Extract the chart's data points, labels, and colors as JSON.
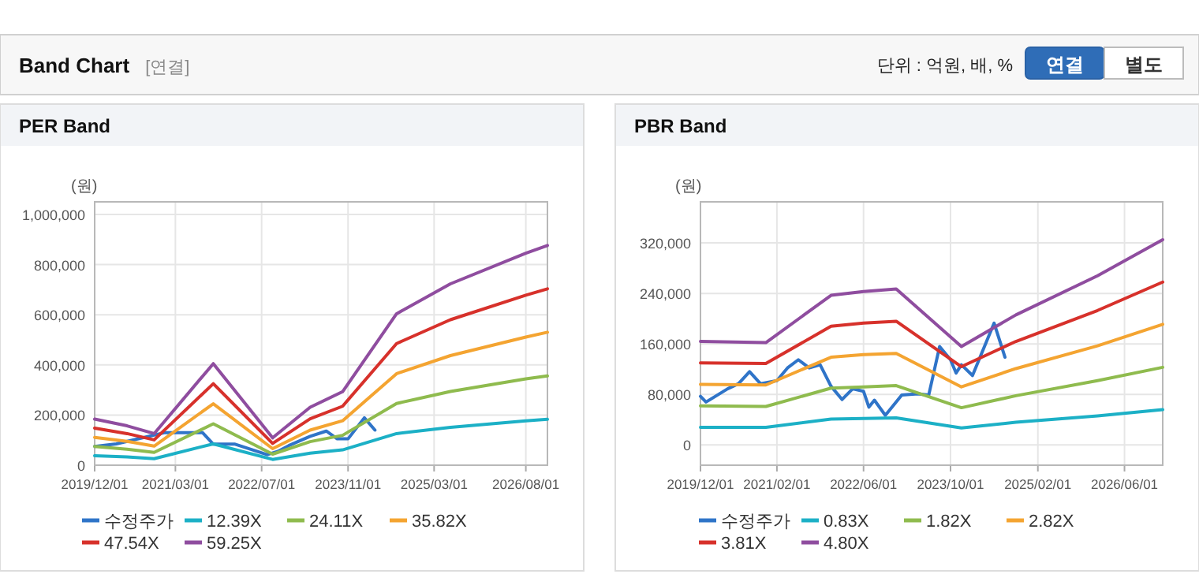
{
  "chart_data": [
    {
      "type": "other",
      "title": "Band Chart",
      "annotations": [
        "[연결]",
        "단위 : 억원, 배, %",
        "연결",
        "별도"
      ]
    },
    {
      "type": "line",
      "title": "PER Band",
      "ylabel": "(원)",
      "legend": "bottom",
      "grid": true,
      "xlim": [
        "2019-12-01",
        "2026-12-01"
      ],
      "ylim": [
        0,
        1050000
      ],
      "xticks": [
        {
          "value": "2019-12-01",
          "label": "2019/12/01"
        },
        {
          "value": "2021-03-01",
          "label": "2021/03/01"
        },
        {
          "value": "2022-07-01",
          "label": "2022/07/01"
        },
        {
          "value": "2023-11-01",
          "label": "2023/11/01"
        },
        {
          "value": "2025-03-01",
          "label": "2025/03/01"
        },
        {
          "value": "2026-08-01",
          "label": "2026/08/01"
        }
      ],
      "yticks": [
        {
          "value": 0,
          "label": "0"
        },
        {
          "value": 200000,
          "label": "200,000"
        },
        {
          "value": 400000,
          "label": "400,000"
        },
        {
          "value": 600000,
          "label": "600,000"
        },
        {
          "value": 800000,
          "label": "800,000"
        },
        {
          "value": 1000000,
          "label": "1,000,000"
        }
      ],
      "series": [
        {
          "name": "수정주가",
          "color": "#2f74c8",
          "x": [
            "2019-12",
            "2020-04",
            "2020-09",
            "2021-01",
            "2021-08",
            "2021-10",
            "2022-02",
            "2022-05",
            "2022-08",
            "2022-10",
            "2022-12",
            "2023-04",
            "2023-07",
            "2023-09",
            "2023-11",
            "2024-02",
            "2024-04"
          ],
          "values": [
            75000,
            85000,
            110000,
            130000,
            130000,
            84000,
            84000,
            63000,
            42000,
            55000,
            78000,
            115000,
            136000,
            105000,
            105000,
            189000,
            140000
          ]
        },
        {
          "name": "12.39X",
          "color": "#1cb0c6",
          "x": [
            "2019-12",
            "2020-06",
            "2020-11",
            "2021-10",
            "2022-09",
            "2023-04",
            "2023-10",
            "2024-08",
            "2025-06",
            "2026-08",
            "2026-12"
          ],
          "values": [
            38000,
            33000,
            26000,
            85000,
            23000,
            48000,
            61000,
            126000,
            151000,
            177000,
            183000
          ]
        },
        {
          "name": "24.11X",
          "color": "#8fbb4e",
          "x": [
            "2019-12",
            "2020-06",
            "2020-11",
            "2021-10",
            "2022-09",
            "2023-04",
            "2023-10",
            "2024-08",
            "2025-06",
            "2026-08",
            "2026-12"
          ],
          "values": [
            75000,
            64000,
            51000,
            165000,
            44000,
            94000,
            119000,
            246000,
            294000,
            344000,
            356000
          ]
        },
        {
          "name": "35.82X",
          "color": "#f4a431",
          "x": [
            "2019-12",
            "2020-06",
            "2020-11",
            "2021-10",
            "2022-09",
            "2023-04",
            "2023-10",
            "2024-08",
            "2025-06",
            "2026-08",
            "2026-12"
          ],
          "values": [
            111000,
            95000,
            76000,
            245000,
            66000,
            140000,
            177000,
            365000,
            437000,
            511000,
            530000
          ]
        },
        {
          "name": "47.54X",
          "color": "#d7312b",
          "x": [
            "2019-12",
            "2020-06",
            "2020-11",
            "2021-10",
            "2022-09",
            "2023-04",
            "2023-10",
            "2024-08",
            "2025-06",
            "2026-08",
            "2026-12"
          ],
          "values": [
            148000,
            126000,
            101000,
            325000,
            87000,
            185000,
            235000,
            485000,
            580000,
            678000,
            703000
          ]
        },
        {
          "name": "59.25X",
          "color": "#8f4d9f",
          "x": [
            "2019-12",
            "2020-06",
            "2020-11",
            "2021-10",
            "2022-09",
            "2023-04",
            "2023-10",
            "2024-08",
            "2025-06",
            "2026-08",
            "2026-12"
          ],
          "values": [
            184000,
            157000,
            126000,
            405000,
            109000,
            231000,
            293000,
            604000,
            723000,
            845000,
            876000
          ]
        }
      ]
    },
    {
      "type": "line",
      "title": "PBR Band",
      "ylabel": "(원)",
      "legend": "bottom",
      "grid": true,
      "xlim": [
        "2019-12-01",
        "2027-01-01"
      ],
      "ylim": [
        -32000,
        385000
      ],
      "xticks": [
        {
          "value": "2019-12-01",
          "label": "2019/12/01"
        },
        {
          "value": "2021-02-01",
          "label": "2021/02/01"
        },
        {
          "value": "2022-06-01",
          "label": "2022/06/01"
        },
        {
          "value": "2023-10-01",
          "label": "2023/10/01"
        },
        {
          "value": "2025-02-01",
          "label": "2025/02/01"
        },
        {
          "value": "2026-06-01",
          "label": "2026/06/01"
        }
      ],
      "yticks": [
        {
          "value": 0,
          "label": "0"
        },
        {
          "value": 80000,
          "label": "80,000"
        },
        {
          "value": 160000,
          "label": "160,000"
        },
        {
          "value": 240000,
          "label": "240,000"
        },
        {
          "value": 320000,
          "label": "320,000"
        }
      ],
      "series": [
        {
          "name": "수정주가",
          "color": "#2f74c8",
          "x": [
            "2019-12",
            "2020-01",
            "2020-05",
            "2020-07",
            "2020-09",
            "2020-11",
            "2021-02",
            "2021-04",
            "2021-06",
            "2021-08",
            "2021-10",
            "2021-12",
            "2022-02",
            "2022-04",
            "2022-06",
            "2022-07",
            "2022-08",
            "2022-10",
            "2023-01",
            "2023-04",
            "2023-06",
            "2023-08",
            "2023-10",
            "2023-11",
            "2023-12",
            "2024-02",
            "2024-06",
            "2024-08"
          ],
          "values": [
            77000,
            68000,
            89000,
            97000,
            116000,
            97000,
            102000,
            122000,
            135000,
            122000,
            127000,
            93000,
            72000,
            89000,
            85000,
            60000,
            71000,
            47000,
            79000,
            81000,
            79000,
            156000,
            135000,
            114000,
            127000,
            110000,
            193000,
            139000
          ]
        },
        {
          "name": "0.83X",
          "color": "#1cb0c6",
          "x": [
            "2019-12",
            "2020-12",
            "2021-12",
            "2022-06",
            "2022-12",
            "2023-12",
            "2024-10",
            "2026-01",
            "2027-01"
          ],
          "values": [
            28000,
            28000,
            41000,
            42000,
            43000,
            27000,
            36000,
            46000,
            56000
          ]
        },
        {
          "name": "1.82X",
          "color": "#8fbb4e",
          "x": [
            "2019-12",
            "2020-12",
            "2021-12",
            "2022-06",
            "2022-12",
            "2023-12",
            "2024-10",
            "2026-01",
            "2027-01"
          ],
          "values": [
            62000,
            61000,
            90000,
            92000,
            94000,
            59000,
            78000,
            102000,
            123000
          ]
        },
        {
          "name": "2.82X",
          "color": "#f4a431",
          "x": [
            "2019-12",
            "2020-12",
            "2021-12",
            "2022-06",
            "2022-12",
            "2023-12",
            "2024-10",
            "2026-01",
            "2027-01"
          ],
          "values": [
            96000,
            95000,
            139000,
            143000,
            145000,
            92000,
            121000,
            157000,
            191000
          ]
        },
        {
          "name": "3.81X",
          "color": "#d7312b",
          "x": [
            "2019-12",
            "2020-12",
            "2021-12",
            "2022-06",
            "2022-12",
            "2023-12",
            "2024-10",
            "2026-01",
            "2027-01"
          ],
          "values": [
            130000,
            129000,
            188000,
            193000,
            196000,
            124000,
            164000,
            213000,
            258000
          ]
        },
        {
          "name": "4.80X",
          "color": "#8f4d9f",
          "x": [
            "2019-12",
            "2020-12",
            "2021-12",
            "2022-06",
            "2022-12",
            "2023-12",
            "2024-10",
            "2026-01",
            "2027-01"
          ],
          "values": [
            164000,
            162000,
            237000,
            243000,
            247000,
            156000,
            206000,
            268000,
            325000
          ]
        }
      ]
    }
  ]
}
